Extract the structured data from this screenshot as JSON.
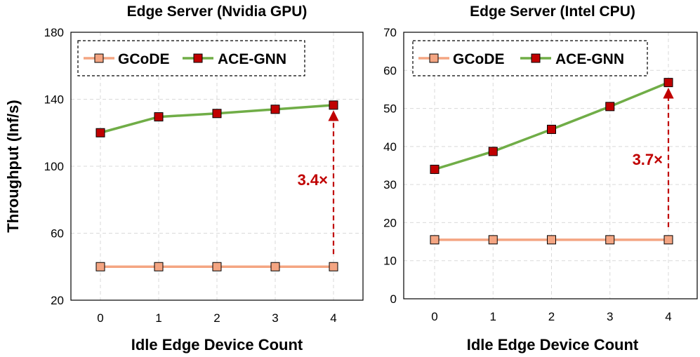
{
  "chart_data": [
    {
      "type": "line",
      "title": "Edge Server (Nvidia GPU)",
      "xlabel": "Idle Edge Device Count",
      "ylabel": "Throughput (Inf/s)",
      "x": [
        0,
        1,
        2,
        3,
        4
      ],
      "xticks": [
        "0",
        "1",
        "2",
        "3",
        "4"
      ],
      "ylim": [
        20,
        180
      ],
      "yticks": [
        20,
        60,
        100,
        140,
        180
      ],
      "ytick_labels": [
        "20",
        "60",
        "100",
        "140",
        "180"
      ],
      "grid": true,
      "legend": "top-left",
      "series": [
        {
          "name": "GCoDE",
          "values": [
            40,
            40,
            40,
            40,
            40
          ],
          "color": "#f4a582",
          "marker": "#f4a582"
        },
        {
          "name": "ACE-GNN",
          "values": [
            120,
            129.5,
            131.5,
            134,
            136.5
          ],
          "color": "#70ad47",
          "marker": "#c00000"
        }
      ],
      "annotation": {
        "text": "3.4×",
        "x": 4,
        "from": 40,
        "to": 136.5
      }
    },
    {
      "type": "line",
      "title": "Edge Server (Intel CPU)",
      "xlabel": "Idle Edge Device Count",
      "ylabel": "",
      "x": [
        0,
        1,
        2,
        3,
        4
      ],
      "xticks": [
        "0",
        "1",
        "2",
        "3",
        "4"
      ],
      "ylim": [
        0,
        70
      ],
      "yticks": [
        0,
        10,
        20,
        30,
        40,
        50,
        60,
        70
      ],
      "ytick_labels": [
        "0",
        "10",
        "20",
        "30",
        "40",
        "50",
        "60",
        "70"
      ],
      "grid": true,
      "legend": "top-left",
      "series": [
        {
          "name": "GCoDE",
          "values": [
            15.5,
            15.5,
            15.5,
            15.5,
            15.5
          ],
          "color": "#f4a582",
          "marker": "#f4a582"
        },
        {
          "name": "ACE-GNN",
          "values": [
            34,
            38.7,
            44.5,
            50.5,
            56.8
          ],
          "color": "#70ad47",
          "marker": "#c00000"
        }
      ],
      "annotation": {
        "text": "3.7×",
        "x": 4,
        "from": 15.5,
        "to": 56.8
      }
    }
  ],
  "colors": {
    "accent": "#c00000",
    "gcode_line": "#f4a582",
    "acegnn_line": "#70ad47"
  }
}
